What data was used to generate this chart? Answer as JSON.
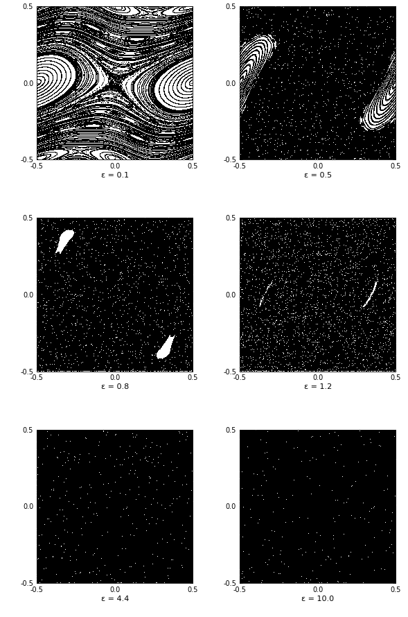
{
  "epsilons": [
    0.1,
    0.5,
    0.8,
    1.2,
    4.4,
    10.0
  ],
  "epsilon_labels": [
    "ε = 0.1",
    "ε = 0.5",
    "ε = 0.8",
    "ε = 1.2",
    "ε = 4.4",
    "ε = 10.0"
  ],
  "xlim": [
    -0.5,
    0.5
  ],
  "ylim": [
    -0.5,
    0.5
  ],
  "xticks": [
    -0.5,
    0.0,
    0.5
  ],
  "yticks": [
    -0.5,
    0.0,
    0.5
  ],
  "tick_labels_x": [
    "-0.5",
    "0.0",
    "0.5"
  ],
  "tick_labels_y": [
    "-0.5",
    "0.0",
    "0.5"
  ],
  "figsize": [
    5.89,
    8.9
  ],
  "dpi": 100,
  "markersize": 0.5,
  "background": "white",
  "n_grid": 30,
  "n_random": 30,
  "n_iter_reg": 500,
  "n_iter_chaos": 3000
}
